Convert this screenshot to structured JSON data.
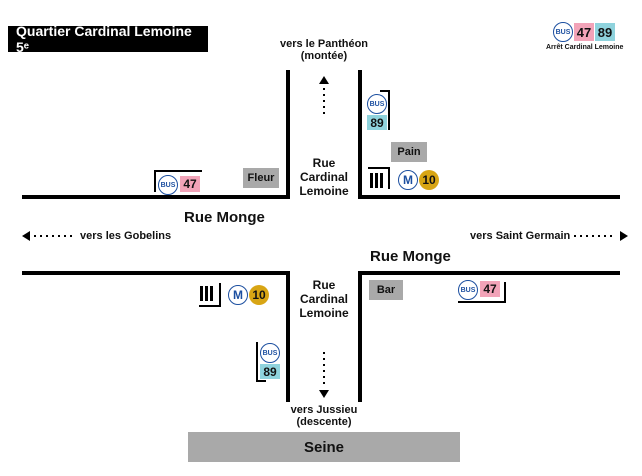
{
  "title": "Quartier Cardinal Lemoine 5ᵉ",
  "legend": {
    "bus_label": "BUS",
    "line_a": "47",
    "line_b": "89",
    "caption": "Arrêt Cardinal Lemoine"
  },
  "streets": {
    "monge_top": "Rue Monge",
    "monge_bottom": "Rue Monge",
    "cardinal_top": [
      "Rue",
      "Cardinal",
      "Lemoine"
    ],
    "cardinal_bottom": [
      "Rue",
      "Cardinal",
      "Lemoine"
    ]
  },
  "directions": {
    "north": [
      "vers le Panthéon",
      "(montée)"
    ],
    "south": [
      "vers Jussieu",
      "(descente)"
    ],
    "west": "vers les Gobelins",
    "east": "vers Saint Germain"
  },
  "places": {
    "fleur": "Fleur",
    "pain": "Pain",
    "bar": "Bar",
    "seine": "Seine"
  },
  "stops": {
    "bus_label": "BUS",
    "ne_bus_line": "89",
    "w_bus_line": "47",
    "se_bus_line": "47",
    "sw_bus_line": "89",
    "metro_label": "M",
    "metro_line": "10"
  },
  "colors": {
    "bus_blue": "#1c4fa0",
    "line_47": "#f2a3b8",
    "line_89": "#8fd3dd",
    "metro_10": "#d8a514",
    "shop_grey": "#a9a9a9"
  }
}
